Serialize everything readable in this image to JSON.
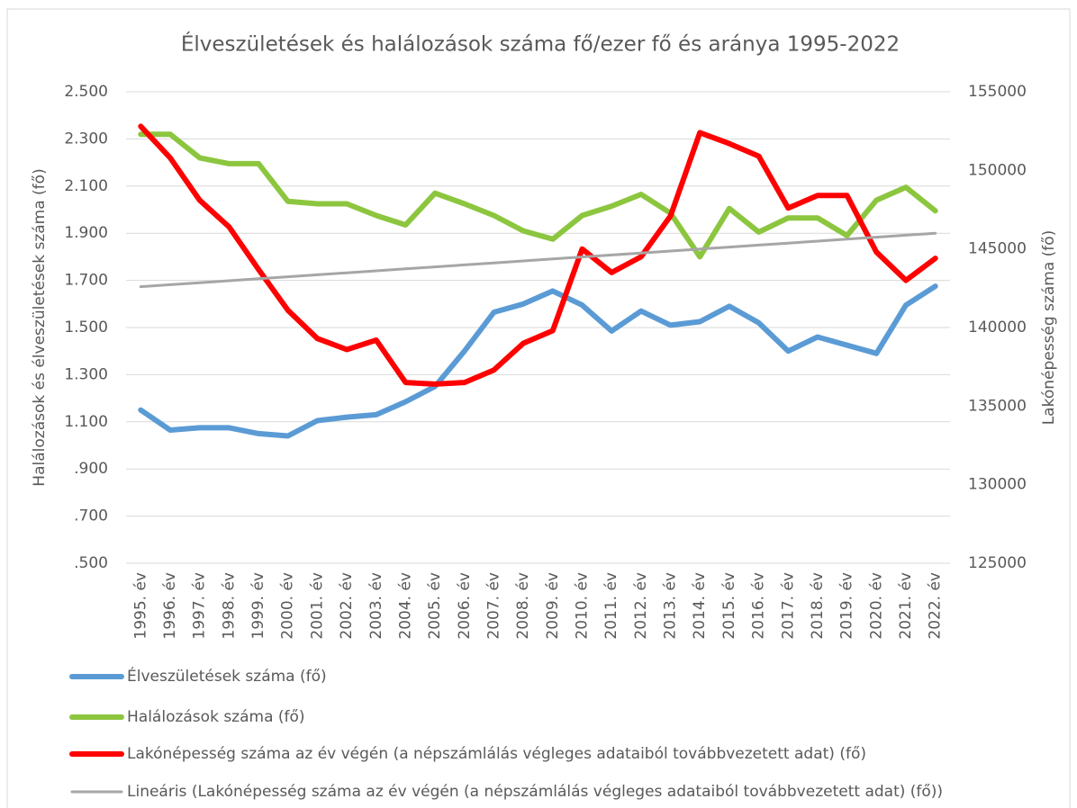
{
  "chart_data": {
    "type": "line",
    "title": "Élveszületések és halálozások száma fő/ezer fő és aránya 1995-2022",
    "y_label": "Halálozások és élveszületések száma (fő)",
    "y2_label": "Lakónépesség száma (fő)",
    "categories": [
      "1995. év",
      "1996. év",
      "1997. év",
      "1998. év",
      "1999. év",
      "2000. év",
      "2001. év",
      "2002. év",
      "2003. év",
      "2004. év",
      "2005. év",
      "2006. év",
      "2007. év",
      "2008. év",
      "2009. év",
      "2010. év",
      "2011. év",
      "2012. év",
      "2013. év",
      "2014. év",
      "2015. év",
      "2016. év",
      "2017. év",
      "2018. év",
      "2019. év",
      "2020. év",
      "2021. év",
      "2022. év"
    ],
    "ylim": [
      500,
      2500
    ],
    "yticks": [
      {
        "value": 500,
        "label": ".500"
      },
      {
        "value": 700,
        "label": ".700"
      },
      {
        "value": 900,
        "label": ".900"
      },
      {
        "value": 1100,
        "label": "1.100"
      },
      {
        "value": 1300,
        "label": "1.300"
      },
      {
        "value": 1500,
        "label": "1.500"
      },
      {
        "value": 1700,
        "label": "1.700"
      },
      {
        "value": 1900,
        "label": "1.900"
      },
      {
        "value": 2100,
        "label": "2.100"
      },
      {
        "value": 2300,
        "label": "2.300"
      },
      {
        "value": 2500,
        "label": "2.500"
      }
    ],
    "y2lim": [
      125000,
      155000
    ],
    "y2ticks": [
      125000,
      130000,
      135000,
      140000,
      145000,
      150000,
      155000
    ],
    "grid": true,
    "legend": "bottom",
    "series": [
      {
        "name": "Élveszületések száma (fő)",
        "color": "#5b9bd5",
        "values": [
          1150,
          1065,
          1075,
          1075,
          1050,
          1040,
          1105,
          1120,
          1130,
          1185,
          1250,
          1400,
          1565,
          1600,
          1655,
          1595,
          1485,
          1570,
          1510,
          1525,
          1590,
          1520,
          1400,
          1460,
          1425,
          1390,
          1595,
          1675
        ]
      },
      {
        "name": "Halálozások száma (fő)",
        "color": "#8cc63f",
        "values": [
          2320,
          2320,
          2220,
          2195,
          2195,
          2035,
          2025,
          2025,
          1975,
          1935,
          2070,
          2025,
          1975,
          1910,
          1875,
          1975,
          2015,
          2065,
          1985,
          1800,
          2005,
          1905,
          1965,
          1965,
          1890,
          2040,
          2095,
          1995
        ]
      },
      {
        "name": "Lakónépesség száma az év végén (a népszámlálás végleges adataiból továbbvezetett adat) (fő)",
        "color": "#ff0000",
        "axis": "y2",
        "values": [
          152800,
          150800,
          148100,
          146400,
          143700,
          141100,
          139300,
          138600,
          139200,
          136500,
          136400,
          136500,
          137300,
          139000,
          139800,
          145000,
          143500,
          144500,
          147100,
          152400,
          151700,
          150900,
          147600,
          148400,
          148400,
          144800,
          143000,
          144400
        ]
      },
      {
        "name": "Lineáris (Lakónépesség száma az év végén (a népszámlálás végleges adataiból továbbvezetett adat) (fő))",
        "color": "#a6a6a6",
        "axis": "y2",
        "values": [
          142600,
          142726,
          142852,
          142978,
          143104,
          143230,
          143356,
          143482,
          143608,
          143734,
          143860,
          143986,
          144112,
          144238,
          144364,
          144490,
          144616,
          144742,
          144868,
          144994,
          145120,
          145246,
          145372,
          145498,
          145624,
          145750,
          145876,
          146002
        ]
      }
    ]
  }
}
